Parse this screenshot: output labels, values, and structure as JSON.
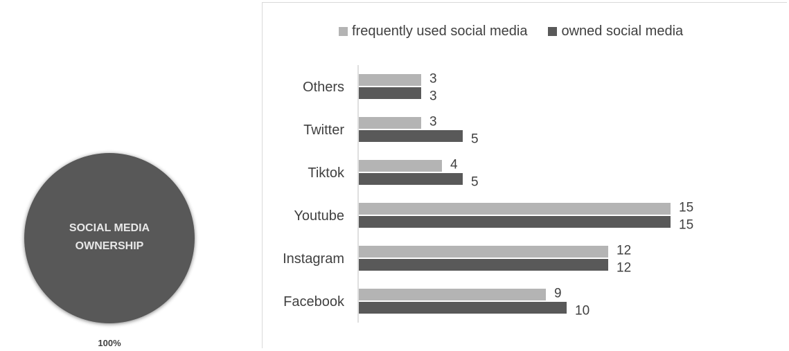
{
  "pie": {
    "label_line1": "SOCIAL MEDIA",
    "label_line2": "OWNERSHIP",
    "percent": "100%",
    "color": "#595959"
  },
  "chart_data": {
    "type": "bar",
    "orientation": "horizontal",
    "categories": [
      "Facebook",
      "Instagram",
      "Youtube",
      "Tiktok",
      "Twitter",
      "Others"
    ],
    "series": [
      {
        "name": "frequently used social media",
        "color": "#b4b4b4",
        "values": [
          9,
          12,
          15,
          4,
          3,
          3
        ]
      },
      {
        "name": "owned social media",
        "color": "#595959",
        "values": [
          10,
          12,
          15,
          5,
          5,
          3
        ]
      }
    ],
    "xlim": [
      0,
      15
    ],
    "grid": false,
    "legend_position": "top"
  }
}
